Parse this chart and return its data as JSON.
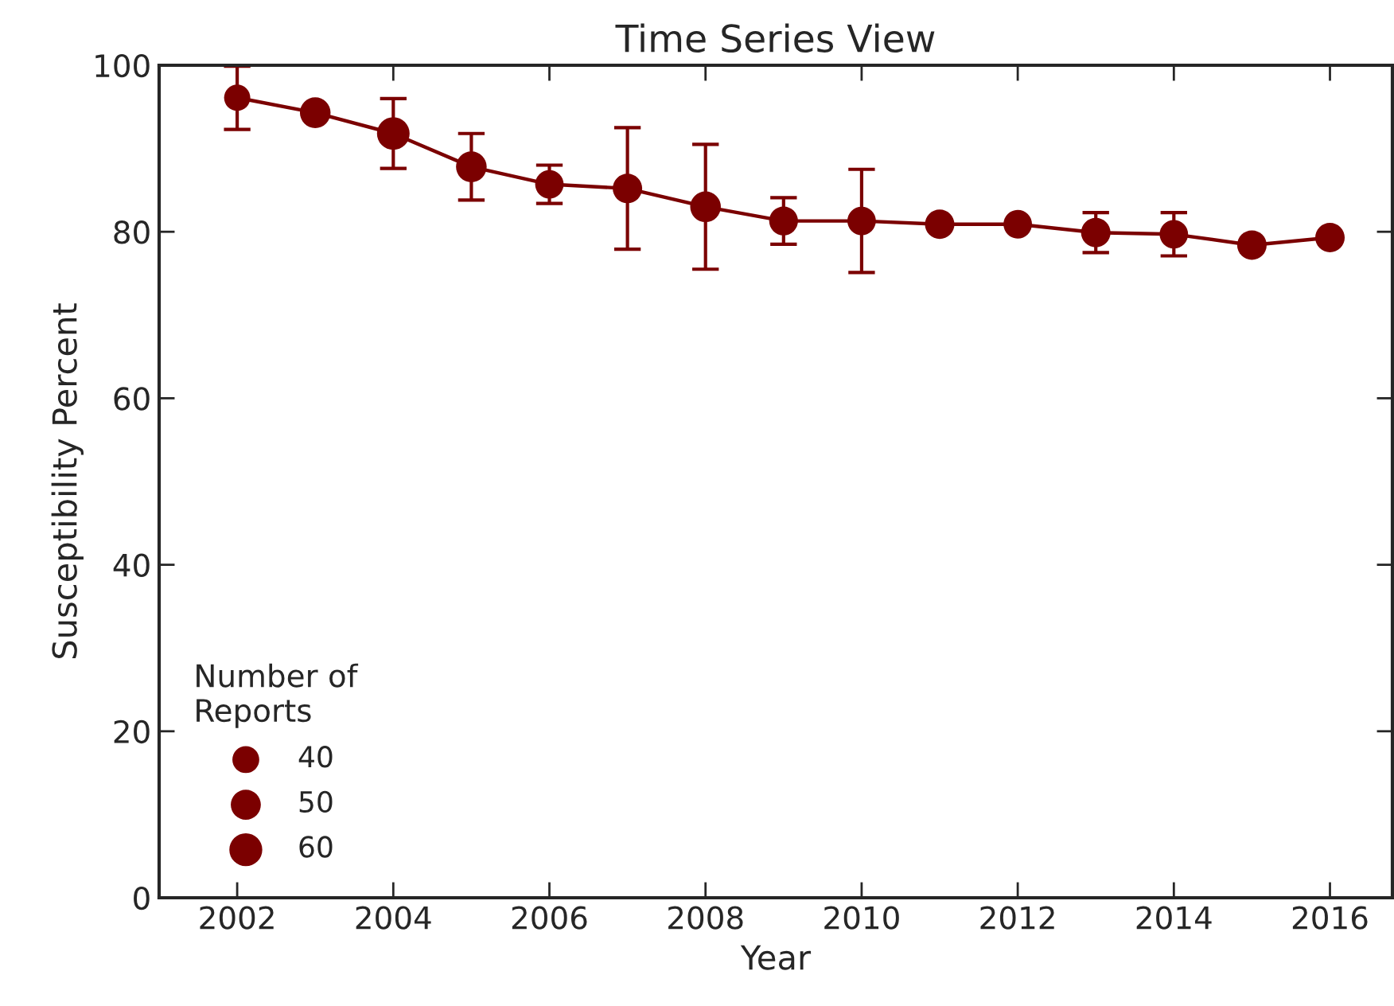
{
  "chart_data": {
    "type": "bubble",
    "title": "Time Series View",
    "xlabel": "Year",
    "ylabel": "Susceptibility Percent",
    "legend_title": "Number of\nReports",
    "x": [
      2002,
      2003,
      2004,
      2005,
      2006,
      2007,
      2008,
      2009,
      2010,
      2011,
      2012,
      2013,
      2014,
      2015,
      2016
    ],
    "series": [
      {
        "type": "line",
        "color": "#7b0000",
        "values": [
          96.1,
          94.3,
          91.8,
          87.8,
          85.7,
          85.2,
          83.0,
          81.3,
          81.3,
          80.9,
          80.9,
          79.9,
          79.7,
          78.4,
          79.3
        ],
        "errors": [
          3.8,
          null,
          4.2,
          4.0,
          2.3,
          7.3,
          7.5,
          2.8,
          6.2,
          null,
          null,
          2.4,
          2.6,
          null,
          null
        ]
      },
      {
        "marker": "circle",
        "color": "#7b0000",
        "values": [
          96.1,
          94.3,
          91.8,
          87.8,
          85.7,
          85.2,
          83.0,
          81.3,
          81.3,
          80.9,
          80.9,
          79.9,
          79.7,
          78.4,
          79.3
        ],
        "sizes": [
          38,
          52,
          59,
          52,
          45,
          48,
          52,
          46,
          45,
          48,
          45,
          48,
          45,
          48,
          48
        ]
      }
    ],
    "size_legend": [
      40,
      50,
      60
    ],
    "xlim": [
      2001,
      2016.8
    ],
    "xticks": [
      2002,
      2004,
      2006,
      2008,
      2010,
      2012,
      2014,
      2016
    ],
    "ylim": [
      0,
      100
    ],
    "yticks": [
      0,
      20,
      40,
      60,
      80,
      100
    ],
    "line_style": "solid"
  }
}
